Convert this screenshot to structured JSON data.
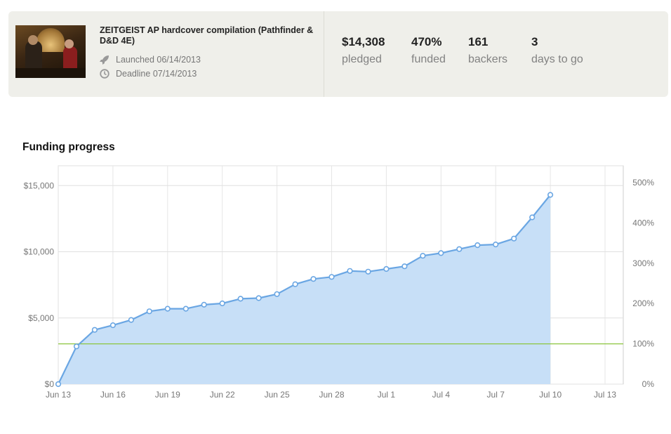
{
  "project": {
    "title": "ZEITGEIST AP hardcover compilation (Pathfinder & D&D 4E)",
    "launched": "Launched 06/14/2013",
    "deadline": "Deadline 07/14/2013",
    "launched_icon": "rocket-icon",
    "deadline_icon": "clock-icon"
  },
  "stats": [
    {
      "value": "$14,308",
      "label": "pledged"
    },
    {
      "value": "470%",
      "label": "funded"
    },
    {
      "value": "161",
      "label": "backers"
    },
    {
      "value": "3",
      "label": "days to go"
    }
  ],
  "section_title": "Funding progress",
  "colors": {
    "area_fill": "#c7dff7",
    "line": "#6aa6e3",
    "goal_line": "#8cc63f",
    "card_bg": "#efefea"
  },
  "chart_data": {
    "type": "area",
    "title": "Funding progress",
    "x_tick_labels": [
      "Jun 13",
      "Jun 16",
      "Jun 19",
      "Jun 22",
      "Jun 25",
      "Jun 28",
      "Jul 1",
      "Jul 4",
      "Jul 7",
      "Jul 10",
      "Jul 13"
    ],
    "y_tick_labels": [
      "$0",
      "$5,000",
      "$10,000",
      "$15,000"
    ],
    "y_ticks": [
      0,
      5000,
      10000,
      15000
    ],
    "y2_tick_labels": [
      "0%",
      "100%",
      "200%",
      "300%",
      "400%",
      "500%"
    ],
    "y2_ticks": [
      0,
      100,
      200,
      300,
      400,
      500
    ],
    "xlim": [
      "2013-06-13",
      "2013-07-14"
    ],
    "ylim": [
      0,
      16500
    ],
    "goal": 3045,
    "grid": true,
    "x": [
      "2013-06-13",
      "2013-06-14",
      "2013-06-15",
      "2013-06-16",
      "2013-06-17",
      "2013-06-18",
      "2013-06-19",
      "2013-06-20",
      "2013-06-21",
      "2013-06-22",
      "2013-06-23",
      "2013-06-24",
      "2013-06-25",
      "2013-06-26",
      "2013-06-27",
      "2013-06-28",
      "2013-06-29",
      "2013-06-30",
      "2013-07-01",
      "2013-07-02",
      "2013-07-03",
      "2013-07-04",
      "2013-07-05",
      "2013-07-06",
      "2013-07-07",
      "2013-07-08",
      "2013-07-09",
      "2013-07-10"
    ],
    "values": [
      0,
      2850,
      4100,
      4450,
      4850,
      5500,
      5700,
      5700,
      6000,
      6100,
      6450,
      6500,
      6800,
      7550,
      7950,
      8100,
      8550,
      8500,
      8700,
      8900,
      9700,
      9900,
      10200,
      10500,
      10550,
      11000,
      12600,
      14300
    ]
  }
}
